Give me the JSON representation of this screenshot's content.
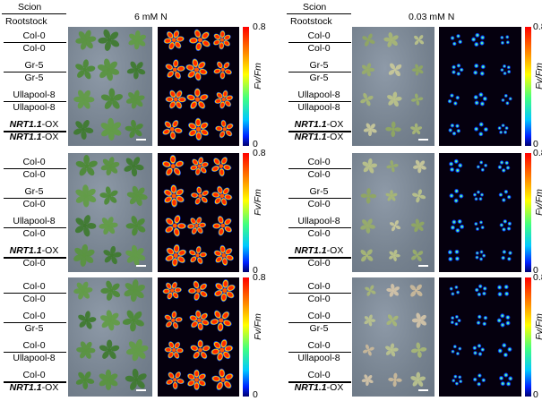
{
  "left": {
    "header": {
      "scion": "Scion",
      "rootstock": "Rootstock",
      "condition": "6 mM N"
    },
    "panels": [
      {
        "rows": [
          {
            "scion": "Col-0",
            "rootstock": "Col-0"
          },
          {
            "scion": "Gr-5",
            "rootstock": "Gr-5"
          },
          {
            "scion": "Ullapool-8",
            "rootstock": "Ullapool-8"
          },
          {
            "scion": "NRT1.1-OX",
            "rootstock": "NRT1.1-OX"
          }
        ]
      },
      {
        "rows": [
          {
            "scion": "Col-0",
            "rootstock": "Col-0"
          },
          {
            "scion": "Gr-5",
            "rootstock": "Col-0"
          },
          {
            "scion": "Ullapool-8",
            "rootstock": "Col-0"
          },
          {
            "scion": "NRT1.1-OX",
            "rootstock": "Col-0"
          }
        ]
      },
      {
        "rows": [
          {
            "scion": "Col-0",
            "rootstock": "Col-0"
          },
          {
            "scion": "Col-0",
            "rootstock": "Gr-5"
          },
          {
            "scion": "Col-0",
            "rootstock": "Ullapool-8"
          },
          {
            "scion": "Col-0",
            "rootstock": "NRT1.1-OX"
          }
        ]
      }
    ]
  },
  "right": {
    "header": {
      "scion": "Scion",
      "rootstock": "Rootstock",
      "condition": "0.03 mM N"
    },
    "panels": [
      {
        "rows": [
          {
            "scion": "Col-0",
            "rootstock": "Col-0"
          },
          {
            "scion": "Gr-5",
            "rootstock": "Gr-5"
          },
          {
            "scion": "Ullapool-8",
            "rootstock": "Ullapool-8"
          },
          {
            "scion": "NRT1.1-OX",
            "rootstock": "NRT1.1-OX"
          }
        ]
      },
      {
        "rows": [
          {
            "scion": "Col-0",
            "rootstock": "Col-0"
          },
          {
            "scion": "Gr-5",
            "rootstock": "Col-0"
          },
          {
            "scion": "Ullapool-8",
            "rootstock": "Col-0"
          },
          {
            "scion": "NRT1.1-OX",
            "rootstock": "Col-0"
          }
        ]
      },
      {
        "rows": [
          {
            "scion": "Col-0",
            "rootstock": "Col-0"
          },
          {
            "scion": "Col-0",
            "rootstock": "Gr-5"
          },
          {
            "scion": "Col-0",
            "rootstock": "Ullapool-8"
          },
          {
            "scion": "Col-0",
            "rootstock": "NRT1.1-OX"
          }
        ]
      }
    ]
  },
  "colorbar": {
    "max": "0.8",
    "min": "0",
    "label": "Fv/Fm"
  },
  "colors": {
    "leaf_high_n": "#4f8a3a",
    "leaf_low_n": "#a9b87a",
    "photo_bg": "#76828f",
    "fluor_bg": "#05000e"
  }
}
